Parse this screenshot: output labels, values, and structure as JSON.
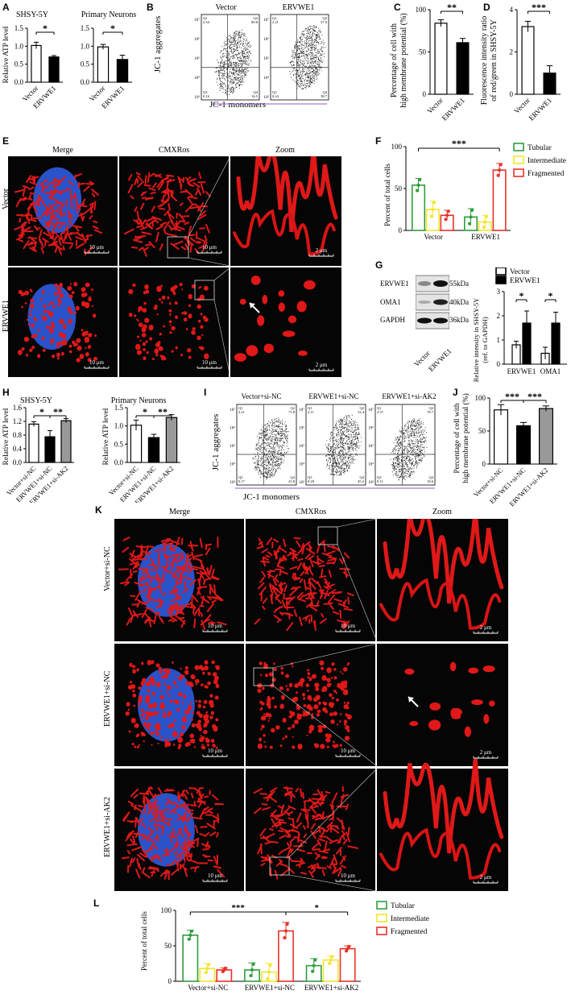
{
  "panels": {
    "A": {
      "label": "A",
      "charts": [
        {
          "title": "SHSY-5Y",
          "ylabel": "Relative ATP level",
          "categories": [
            "Vector",
            "ERVWE1"
          ],
          "values": [
            1.02,
            0.7
          ],
          "errors": [
            0.09,
            0.04
          ],
          "yticks": [
            "0.0",
            "0.5",
            "1.0",
            "1.5"
          ],
          "ylim": [
            0,
            1.5
          ],
          "sig": "*"
        },
        {
          "title": "Primary Neurons",
          "ylabel": "",
          "categories": [
            "Vector",
            "ERVWE1"
          ],
          "values": [
            0.98,
            0.63
          ],
          "errors": [
            0.07,
            0.12
          ],
          "yticks": [
            "0.0",
            "0.5",
            "1.0",
            "1.5"
          ],
          "ylim": [
            0,
            1.5
          ],
          "sig": "*"
        }
      ]
    },
    "B": {
      "label": "B",
      "plots": [
        {
          "title": "Vector",
          "q1": "Q1\n2.54",
          "q2": "Q2\n80.8",
          "q3": "Q3\n0.16",
          "q4": "Q4\n16.5"
        },
        {
          "title": "ERVWE1",
          "q1": "Q1\n2.21",
          "q2": "Q2\n57.0",
          "q3": "Q3\n0.24",
          "q4": "Q4\n38.7"
        }
      ],
      "ylabel": "JC-1 aggregates",
      "xlabel": "JC-1 monomers"
    },
    "C": {
      "label": "C",
      "ylabel_line1": "Percentage of cell with",
      "ylabel_line2": "high membrane potential (%)",
      "categories": [
        "Vector",
        "ERVWE1"
      ],
      "values": [
        84,
        61
      ],
      "errors": [
        4,
        5
      ],
      "yticks": [
        "0",
        "50",
        "100"
      ],
      "ylim": [
        0,
        100
      ],
      "sig": "**"
    },
    "D": {
      "label": "D",
      "ylabel_line1": "Fluorescence intensity ratio",
      "ylabel_line2": "of red/green in SHSY-5Y",
      "categories": [
        "Vector",
        "ERVWE1"
      ],
      "values": [
        3.2,
        1.0
      ],
      "errors": [
        0.25,
        0.35
      ],
      "yticks": [
        "0",
        "2",
        "4"
      ],
      "ylim": [
        0,
        4
      ],
      "sig": "***"
    },
    "E": {
      "label": "E",
      "columns": [
        "Merge",
        "CMXRos",
        "Zoom"
      ],
      "rows": [
        "Vector",
        "ERVWE1"
      ],
      "scale_main": "10 μm",
      "scale_zoom": "2 μm"
    },
    "F": {
      "label": "F",
      "ylabel": "Percent of total cells",
      "groups": [
        "Vector",
        "ERVWE1"
      ],
      "legend": [
        "Tubular",
        "Intermediate",
        "Fragmented"
      ],
      "colors": [
        "#2e9e3e",
        "#f2e62e",
        "#e8312a"
      ],
      "values": [
        [
          54,
          25,
          18
        ],
        [
          16,
          10,
          72
        ]
      ],
      "errors": [
        [
          8,
          10,
          6
        ],
        [
          10,
          8,
          8
        ]
      ],
      "yticks": [
        "0",
        "50",
        "100"
      ],
      "ylim": [
        0,
        100
      ],
      "sig": "***"
    },
    "G": {
      "label": "G",
      "blot_labels": [
        "ERVWE1",
        "OMA1",
        "GAPDH"
      ],
      "kda": [
        "55kDa",
        "40kDa",
        "36kDa"
      ],
      "lanes": [
        "Vector",
        "ERVWE1"
      ],
      "ylabel_line1": "Relative intensity in SHSY-5Y",
      "ylabel_line2": "(ref. to GAPDH)",
      "legend": [
        "Vector",
        "ERVWE1"
      ],
      "categories": [
        "ERVWE1",
        "OMA1"
      ],
      "values": [
        [
          0.8,
          1.7
        ],
        [
          0.45,
          1.7
        ]
      ],
      "errors": [
        [
          0.15,
          0.5
        ],
        [
          0.25,
          0.45
        ]
      ],
      "yticks": [
        "0",
        "1",
        "2",
        "3"
      ],
      "ylim": [
        0,
        3
      ],
      "sig": [
        "*",
        "*"
      ]
    },
    "H": {
      "label": "H",
      "charts": [
        {
          "title": "SHSY-5Y",
          "ylabel": "Relative ATP level",
          "categories": [
            "Vector+si-NC",
            "ERVWE1+si-NC",
            "ERVWE1+si-AK2"
          ],
          "values": [
            1.12,
            0.75,
            1.22
          ],
          "errors": [
            0.07,
            0.18,
            0.06
          ],
          "yticks": [
            "0.0",
            "0.4",
            "0.8",
            "1.2",
            "1.6"
          ],
          "ylim": [
            0,
            1.6
          ],
          "sig": [
            "*",
            "**"
          ]
        },
        {
          "title": "Primary Neurons",
          "ylabel": "Relative ATP level",
          "categories": [
            "Vector+si-NC",
            "ERVWE1+si-NC",
            "ERVWE1+si-AK2"
          ],
          "values": [
            1.02,
            0.68,
            1.23
          ],
          "errors": [
            0.14,
            0.09,
            0.08
          ],
          "yticks": [
            "0.0",
            "0.5",
            "1.0",
            "1.5"
          ],
          "ylim": [
            0,
            1.5
          ],
          "sig": [
            "*",
            "**"
          ]
        }
      ]
    },
    "I": {
      "label": "I",
      "plots": [
        {
          "title": "Vector+si-NC",
          "q1": "Q1\n2.21",
          "q2": "Q2\n71.8",
          "q3": "Q3\n0.17",
          "q4": "Q4\n25.8"
        },
        {
          "title": "ERVWE1+si-NC",
          "q1": "Q1\n2.11",
          "q2": "Q2\n52.4",
          "q3": "Q3\n0.28",
          "q4": "Q4\n45.2"
        },
        {
          "title": "ERVWE1+si-AK2",
          "q1": "Q1\n2.57",
          "q2": "Q2\n78.7",
          "q3": "Q3\n0.11",
          "q4": "Q4\n18.6"
        }
      ],
      "ylabel": "JC-1 aggregates",
      "xlabel": "JC-1 monomers"
    },
    "J": {
      "label": "J",
      "ylabel_line1": "Percentage of cell with",
      "ylabel_line2": "high membrane potential (%)",
      "categories": [
        "Vector+si-NC",
        "ERVWE1+si-NC",
        "ERVWE1+si-AK2"
      ],
      "values": [
        82,
        58,
        84
      ],
      "errors": [
        8,
        5,
        4
      ],
      "yticks": [
        "0",
        "50",
        "100"
      ],
      "ylim": [
        0,
        100
      ],
      "sig": [
        "***",
        "***"
      ]
    },
    "K": {
      "label": "K",
      "columns": [
        "Merge",
        "CMXRos",
        "Zoom"
      ],
      "rows": [
        "Vector+si-NC",
        "ERVWE1+si-NC",
        "ERVWE1+si-AK2"
      ],
      "scale_main": "10 μm",
      "scale_zoom": "2 μm"
    },
    "L": {
      "label": "L",
      "ylabel": "Percent of total cells",
      "groups": [
        "Vector+si-NC",
        "ERVWE1+si-NC",
        "ERVWE1+si-AK2"
      ],
      "legend": [
        "Tubular",
        "Intermediate",
        "Fragmented"
      ],
      "colors": [
        "#2e9e3e",
        "#f2e62e",
        "#e8312a"
      ],
      "values": [
        [
          65,
          18,
          16
        ],
        [
          16,
          13,
          71
        ],
        [
          22,
          30,
          46
        ]
      ],
      "errors": [
        [
          7,
          7,
          3
        ],
        [
          10,
          12,
          12
        ],
        [
          10,
          6,
          4
        ]
      ],
      "yticks": [
        "0",
        "50",
        "100"
      ],
      "ylim": [
        0,
        100
      ],
      "sig": [
        "***",
        "*"
      ]
    }
  },
  "chart_data": [
    {
      "type": "bar",
      "panel": "A1",
      "title": "SHSY-5Y",
      "categories": [
        "Vector",
        "ERVWE1"
      ],
      "values": [
        1.02,
        0.7
      ],
      "ylabel": "Relative ATP level",
      "ylim": [
        0,
        1.5
      ]
    },
    {
      "type": "bar",
      "panel": "A2",
      "title": "Primary Neurons",
      "categories": [
        "Vector",
        "ERVWE1"
      ],
      "values": [
        0.98,
        0.63
      ],
      "ylim": [
        0,
        1.5
      ]
    },
    {
      "type": "bar",
      "panel": "C",
      "categories": [
        "Vector",
        "ERVWE1"
      ],
      "values": [
        84,
        61
      ],
      "ylim": [
        0,
        100
      ]
    },
    {
      "type": "bar",
      "panel": "D",
      "categories": [
        "Vector",
        "ERVWE1"
      ],
      "values": [
        3.2,
        1.0
      ],
      "ylim": [
        0,
        4
      ]
    },
    {
      "type": "bar",
      "panel": "F",
      "categories": [
        "Vector",
        "ERVWE1"
      ],
      "series": [
        {
          "name": "Tubular",
          "values": [
            54,
            16
          ]
        },
        {
          "name": "Intermediate",
          "values": [
            25,
            10
          ]
        },
        {
          "name": "Fragmented",
          "values": [
            18,
            72
          ]
        }
      ],
      "ylim": [
        0,
        100
      ]
    },
    {
      "type": "bar",
      "panel": "G",
      "categories": [
        "ERVWE1",
        "OMA1"
      ],
      "series": [
        {
          "name": "Vector",
          "values": [
            0.8,
            0.45
          ]
        },
        {
          "name": "ERVWE1",
          "values": [
            1.7,
            1.7
          ]
        }
      ],
      "ylim": [
        0,
        3
      ]
    },
    {
      "type": "bar",
      "panel": "H1",
      "title": "SHSY-5Y",
      "categories": [
        "Vector+si-NC",
        "ERVWE1+si-NC",
        "ERVWE1+si-AK2"
      ],
      "values": [
        1.12,
        0.75,
        1.22
      ],
      "ylim": [
        0,
        1.6
      ]
    },
    {
      "type": "bar",
      "panel": "H2",
      "title": "Primary Neurons",
      "categories": [
        "Vector+si-NC",
        "ERVWE1+si-NC",
        "ERVWE1+si-AK2"
      ],
      "values": [
        1.02,
        0.68,
        1.23
      ],
      "ylim": [
        0,
        1.5
      ]
    },
    {
      "type": "bar",
      "panel": "J",
      "categories": [
        "Vector+si-NC",
        "ERVWE1+si-NC",
        "ERVWE1+si-AK2"
      ],
      "values": [
        82,
        58,
        84
      ],
      "ylim": [
        0,
        100
      ]
    },
    {
      "type": "bar",
      "panel": "L",
      "categories": [
        "Vector+si-NC",
        "ERVWE1+si-NC",
        "ERVWE1+si-AK2"
      ],
      "series": [
        {
          "name": "Tubular",
          "values": [
            65,
            16,
            22
          ]
        },
        {
          "name": "Intermediate",
          "values": [
            18,
            13,
            30
          ]
        },
        {
          "name": "Fragmented",
          "values": [
            16,
            71,
            46
          ]
        }
      ],
      "ylim": [
        0,
        100
      ]
    }
  ]
}
